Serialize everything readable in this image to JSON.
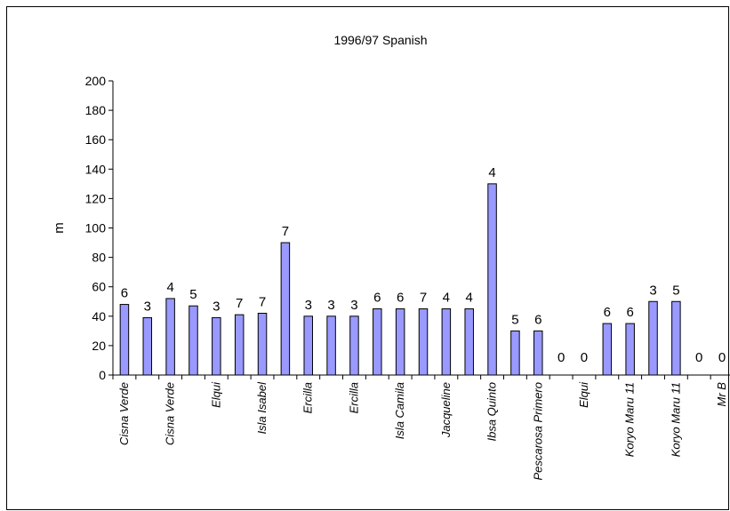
{
  "chart_data": {
    "type": "bar",
    "title": "1996/97 Spanish",
    "xlabel": "",
    "ylabel": "m",
    "ylim": [
      0,
      200
    ],
    "yticks": [
      0,
      20,
      40,
      60,
      80,
      100,
      120,
      140,
      160,
      180,
      200
    ],
    "grid": false,
    "bar_color": "#9999ff",
    "tick_labels": [
      "Cisna Verde",
      "Cisna Verde",
      "Elqui",
      "Isla Isabel",
      "Ercilla",
      "Ercilla",
      "Isla Camila",
      "Jacqueline",
      "Ibsa Quinto",
      "Pescarosa Primero",
      "Elqui",
      "Koryo Maru 11",
      "Koryo Maru 11",
      "Mr B"
    ],
    "values": [
      48,
      39,
      52,
      47,
      39,
      41,
      42,
      90,
      40,
      40,
      40,
      45,
      45,
      45,
      45,
      45,
      130,
      30,
      30,
      0,
      0,
      35,
      35,
      50,
      50,
      0,
      0
    ],
    "data_labels": [
      "6",
      "3",
      "4",
      "5",
      "3",
      "7",
      "7",
      "7",
      "3",
      "3",
      "3",
      "6",
      "6",
      "7",
      "4",
      "4",
      "4",
      "5",
      "6",
      "0",
      "0",
      "6",
      "6",
      "3",
      "5",
      "0",
      "0"
    ]
  }
}
